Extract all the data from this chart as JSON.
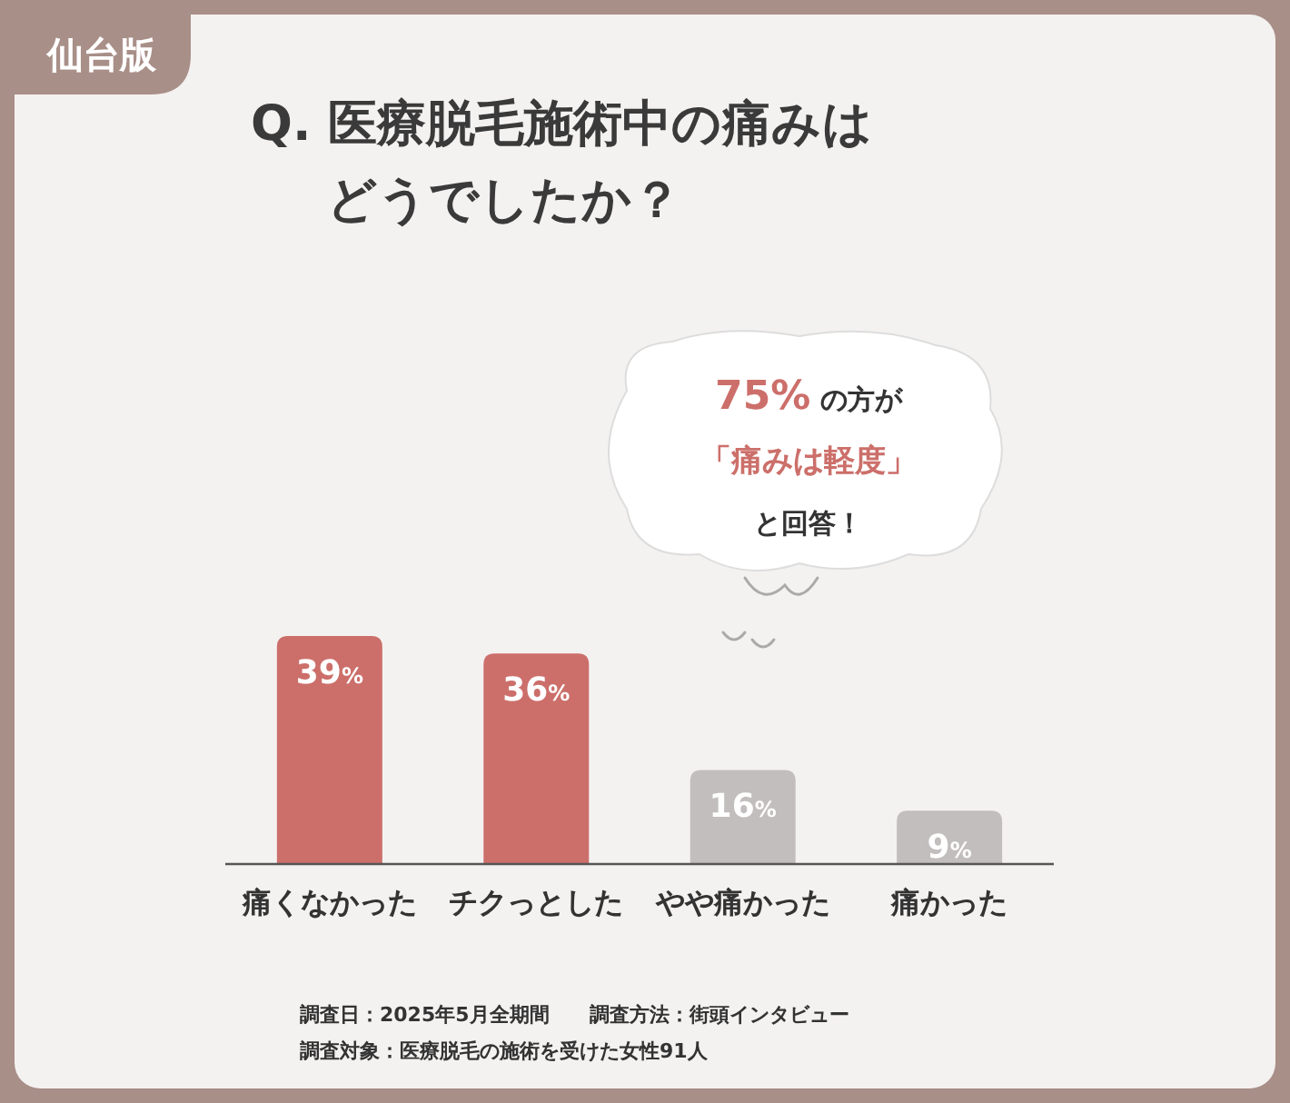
{
  "chart_data": {
    "type": "bar",
    "title": "Q. 医療脱毛施術中の痛みはどうでしたか？",
    "subtitle": "仙台版",
    "categories": [
      "痛くなかった",
      "チクっとした",
      "やや痛かった",
      "痛かった"
    ],
    "values": [
      39,
      36,
      16,
      9
    ],
    "colors": [
      "#cc6f6a",
      "#cc6f6a",
      "#c2bebd",
      "#c2bebd"
    ],
    "value_labels": [
      "39%",
      "36%",
      "16%",
      "9%"
    ],
    "tick_labels": "x",
    "annotations": [
      "75%の方が",
      "「痛みは軽度」",
      "と回答！",
      "調査日：2025年5月全期間　　調査方法：街頭インタビュー",
      "調査対象：医療脱毛の施術を受けた女性91人"
    ]
  }
}
